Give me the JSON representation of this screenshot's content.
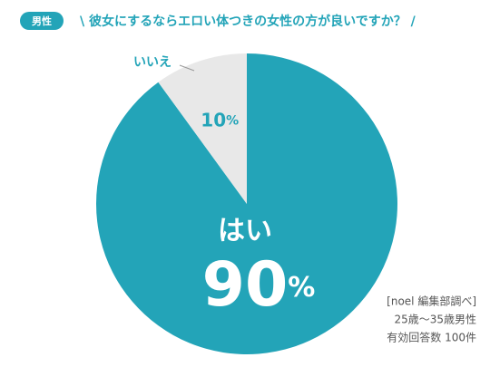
{
  "badge": "男性",
  "chart_data": {
    "type": "pie",
    "title": "\\ 彼女にするならエロい体つきの女性の方が良いですか？ /",
    "categories": [
      "はい",
      "いいえ"
    ],
    "values": [
      90,
      10
    ],
    "value_labels": [
      "90%",
      "10%"
    ],
    "colors": [
      "#23a4b8",
      "#e8e8e8"
    ]
  },
  "notes": [
    "[noel 編集部調べ]",
    "25歳〜35歳男性",
    "有効回答数 100件"
  ]
}
